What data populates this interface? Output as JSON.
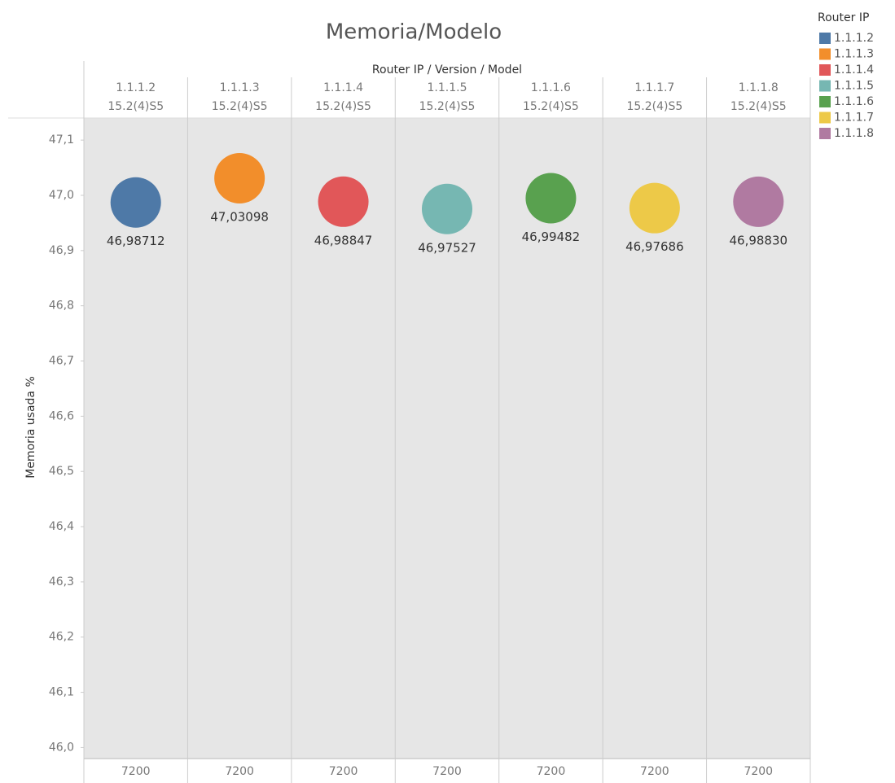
{
  "chart_data": {
    "type": "scatter",
    "title": "Memoria/Modelo",
    "column_header": "Router IP / Version / Model",
    "categories": [
      "1.1.1.2",
      "1.1.1.3",
      "1.1.1.4",
      "1.1.1.5",
      "1.1.1.6",
      "1.1.1.7",
      "1.1.1.8"
    ],
    "versions": [
      "15.2(4)S5",
      "15.2(4)S5",
      "15.2(4)S5",
      "15.2(4)S5",
      "15.2(4)S5",
      "15.2(4)S5",
      "15.2(4)S5"
    ],
    "models": [
      "7200",
      "7200",
      "7200",
      "7200",
      "7200",
      "7200",
      "7200"
    ],
    "values": [
      46.98712,
      47.03098,
      46.98847,
      46.97527,
      46.99482,
      46.97686,
      46.9883
    ],
    "value_labels": [
      "46,98712",
      "47,03098",
      "46,98847",
      "46,97527",
      "46,99482",
      "46,97686",
      "46,98830"
    ],
    "colors": [
      "#4e79a7",
      "#f28e2b",
      "#e15759",
      "#76b7b2",
      "#59a14f",
      "#edc948",
      "#b07aa1"
    ],
    "ylabel": "Memoria usada %",
    "legend_title": "Router IP",
    "legend": "right",
    "ylim": [
      45.98,
      47.14
    ],
    "yticks": [
      {
        "value": 46.0,
        "label": "46,0"
      },
      {
        "value": 46.1,
        "label": "46,1"
      },
      {
        "value": 46.2,
        "label": "46,2"
      },
      {
        "value": 46.3,
        "label": "46,3"
      },
      {
        "value": 46.4,
        "label": "46,4"
      },
      {
        "value": 46.5,
        "label": "46,5"
      },
      {
        "value": 46.6,
        "label": "46,6"
      },
      {
        "value": 46.7,
        "label": "46,7"
      },
      {
        "value": 46.8,
        "label": "46,8"
      },
      {
        "value": 46.9,
        "label": "46,9"
      },
      {
        "value": 47.0,
        "label": "47,0"
      },
      {
        "value": 47.1,
        "label": "47,1"
      }
    ],
    "grid": false
  }
}
